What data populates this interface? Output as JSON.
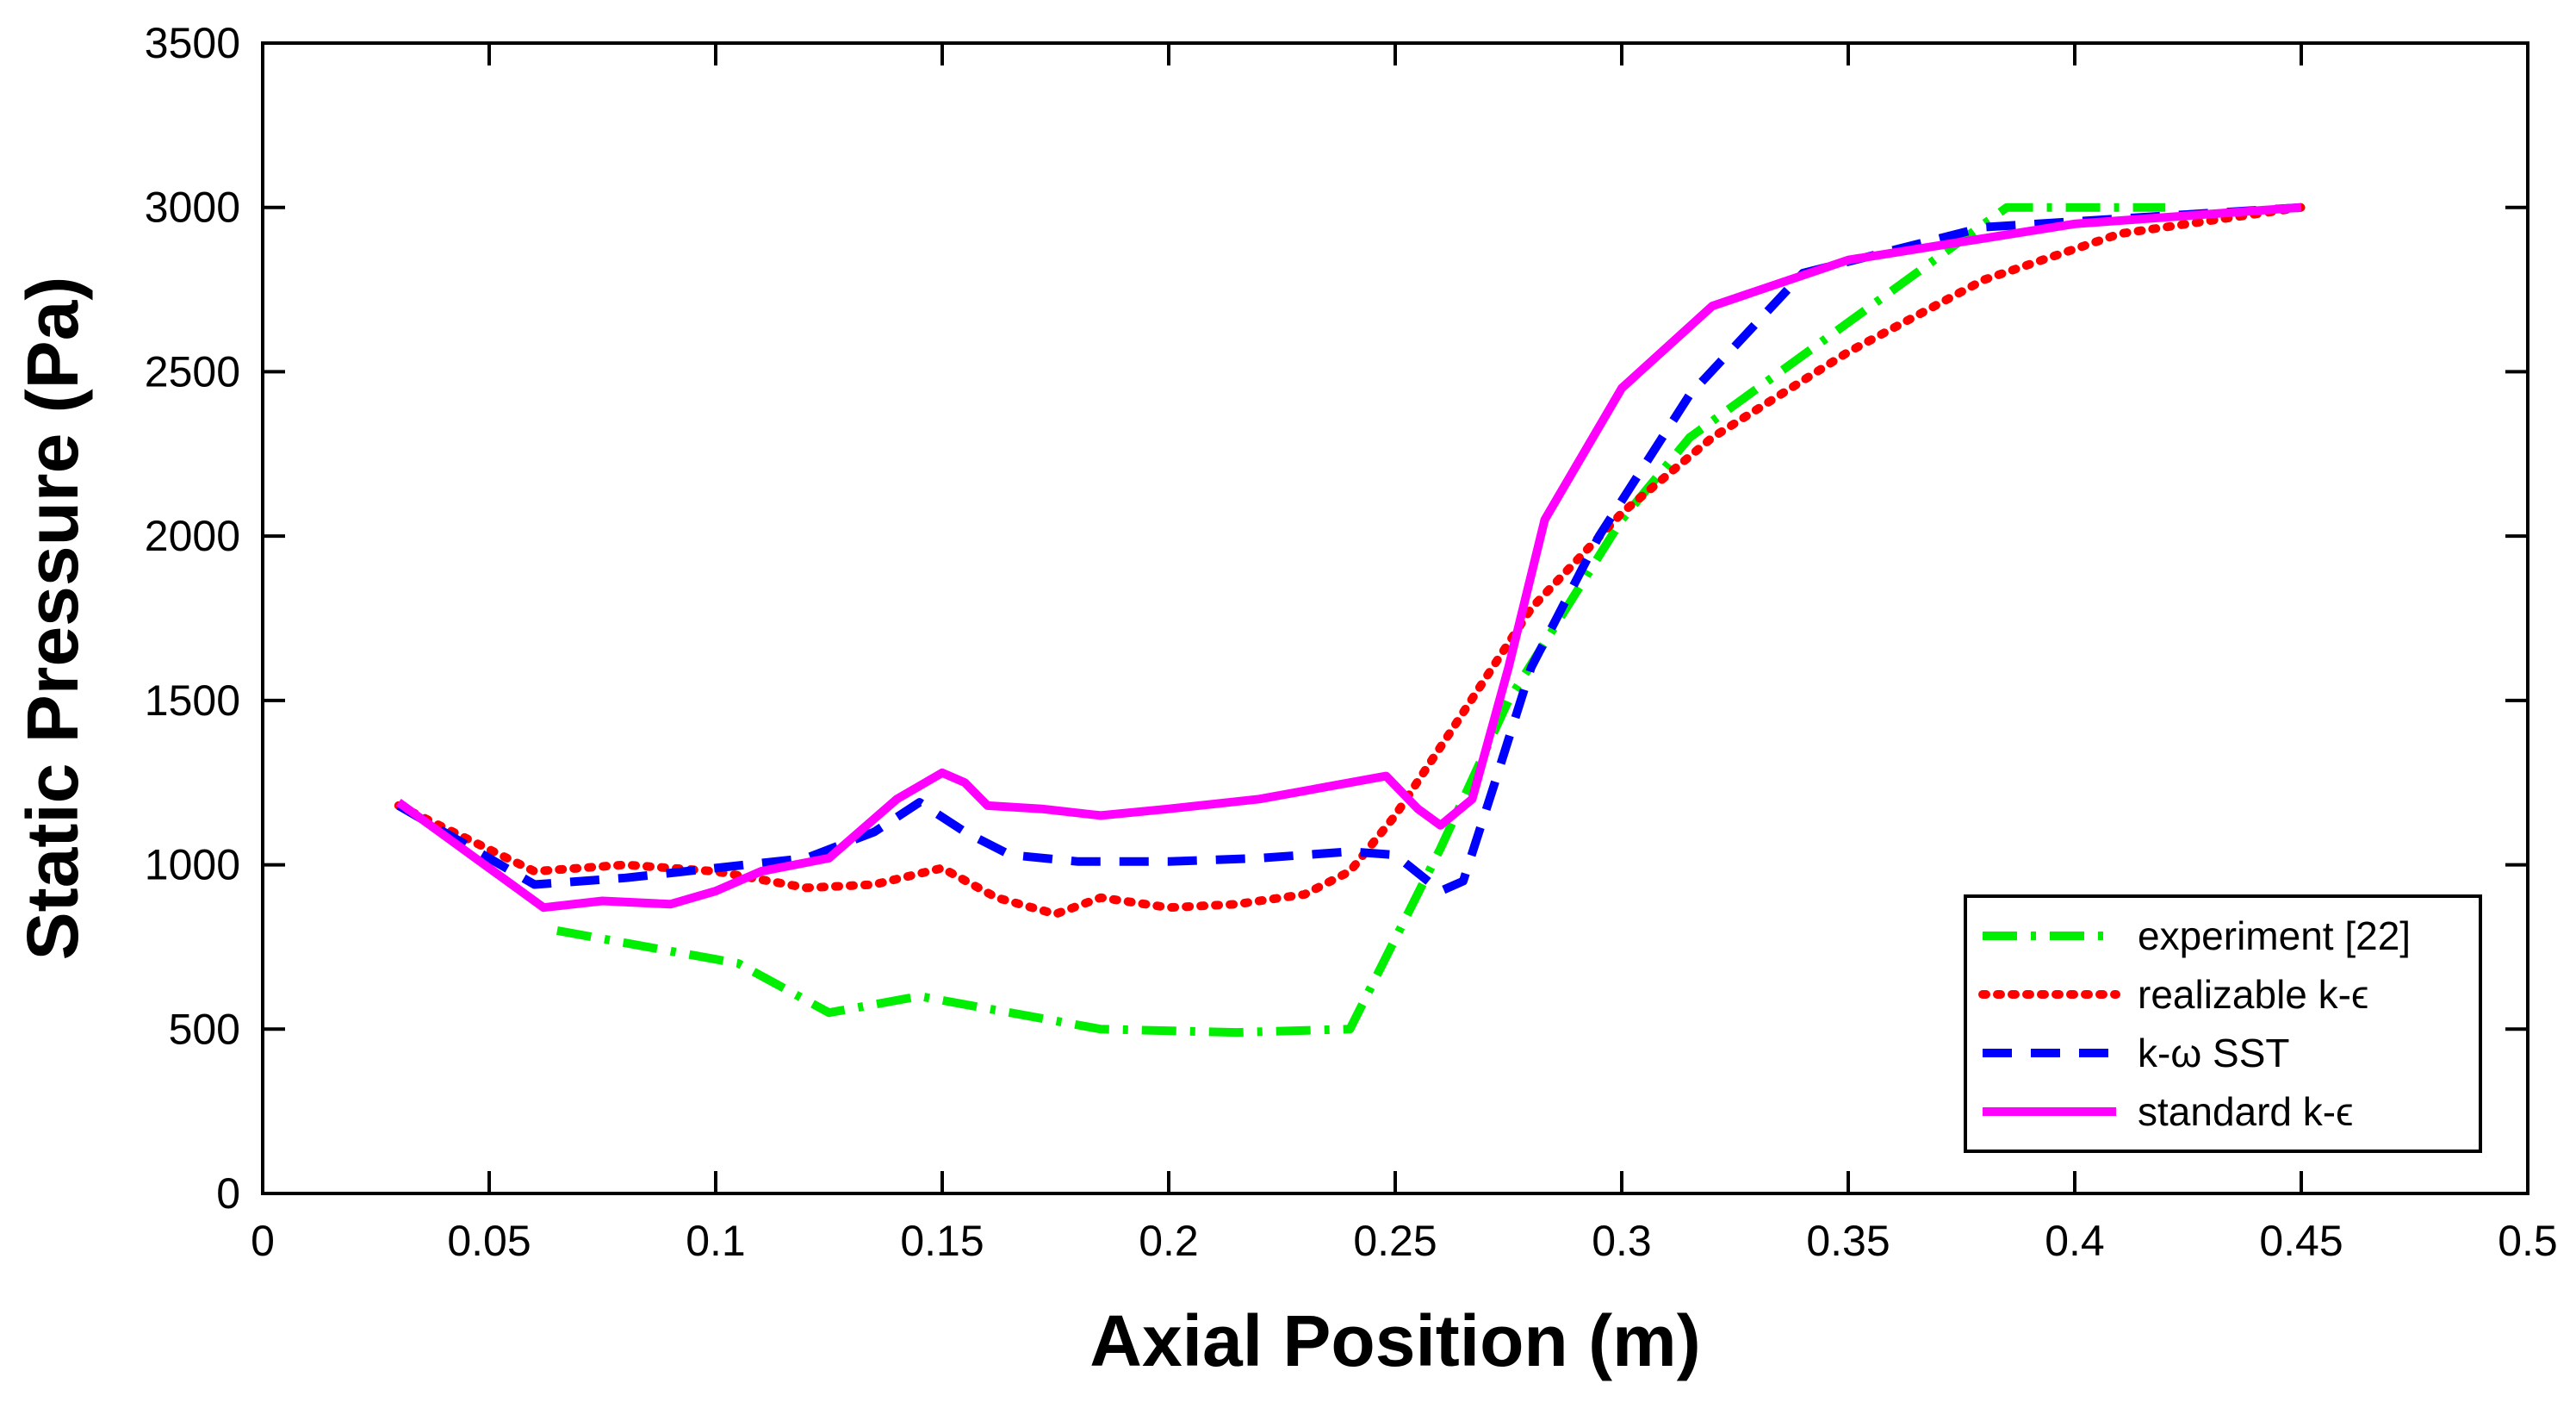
{
  "chart_data": {
    "type": "line",
    "title": "",
    "xlabel": "Axial Position (m)",
    "ylabel": "Static Pressure (Pa)",
    "xlim": [
      0,
      0.5
    ],
    "ylim": [
      0,
      3500
    ],
    "xticks": [
      0,
      0.05,
      0.1,
      0.15,
      0.2,
      0.25,
      0.3,
      0.35,
      0.4,
      0.45,
      0.5
    ],
    "xtick_labels": [
      "0",
      "0.05",
      "0.1",
      "0.15",
      "0.2",
      "0.25",
      "0.3",
      "0.35",
      "0.4",
      "0.45",
      "0.5"
    ],
    "yticks": [
      0,
      500,
      1000,
      1500,
      2000,
      2500,
      3000,
      3500
    ],
    "ytick_labels": [
      "0",
      "500",
      "1000",
      "1500",
      "2000",
      "2500",
      "3000",
      "3500"
    ],
    "grid": false,
    "legend_position": "bottom-right",
    "series": [
      {
        "name": "experiment [22]",
        "color": "#00ee00",
        "style": "dashdot",
        "points": [
          [
            0.065,
            800
          ],
          [
            0.105,
            700
          ],
          [
            0.125,
            550
          ],
          [
            0.145,
            600
          ],
          [
            0.185,
            500
          ],
          [
            0.215,
            490
          ],
          [
            0.24,
            500
          ],
          [
            0.26,
            1050
          ],
          [
            0.275,
            1500
          ],
          [
            0.3,
            2050
          ],
          [
            0.315,
            2300
          ],
          [
            0.35,
            2650
          ],
          [
            0.385,
            3000
          ],
          [
            0.42,
            3000
          ]
        ]
      },
      {
        "name": "realizable k-ϵ",
        "color": "#ff0000",
        "style": "dotted",
        "points": [
          [
            0.03,
            1180
          ],
          [
            0.06,
            980
          ],
          [
            0.08,
            1000
          ],
          [
            0.1,
            980
          ],
          [
            0.12,
            930
          ],
          [
            0.135,
            940
          ],
          [
            0.15,
            990
          ],
          [
            0.162,
            900
          ],
          [
            0.175,
            850
          ],
          [
            0.185,
            900
          ],
          [
            0.2,
            870
          ],
          [
            0.215,
            880
          ],
          [
            0.23,
            910
          ],
          [
            0.24,
            980
          ],
          [
            0.25,
            1150
          ],
          [
            0.262,
            1400
          ],
          [
            0.28,
            1780
          ],
          [
            0.3,
            2070
          ],
          [
            0.32,
            2300
          ],
          [
            0.35,
            2560
          ],
          [
            0.38,
            2780
          ],
          [
            0.41,
            2920
          ],
          [
            0.45,
            3000
          ]
        ]
      },
      {
        "name": "k-ω SST",
        "color": "#0000ff",
        "style": "dashed",
        "points": [
          [
            0.03,
            1180
          ],
          [
            0.06,
            940
          ],
          [
            0.08,
            960
          ],
          [
            0.1,
            990
          ],
          [
            0.12,
            1020
          ],
          [
            0.135,
            1100
          ],
          [
            0.145,
            1190
          ],
          [
            0.155,
            1100
          ],
          [
            0.165,
            1030
          ],
          [
            0.18,
            1010
          ],
          [
            0.2,
            1010
          ],
          [
            0.22,
            1020
          ],
          [
            0.24,
            1040
          ],
          [
            0.25,
            1030
          ],
          [
            0.26,
            920
          ],
          [
            0.265,
            950
          ],
          [
            0.272,
            1250
          ],
          [
            0.28,
            1600
          ],
          [
            0.295,
            2000
          ],
          [
            0.315,
            2430
          ],
          [
            0.34,
            2800
          ],
          [
            0.38,
            2940
          ],
          [
            0.45,
            3000
          ]
        ]
      },
      {
        "name": "standard k-ϵ",
        "color": "#ff00ff",
        "style": "solid",
        "points": [
          [
            0.03,
            1190
          ],
          [
            0.05,
            990
          ],
          [
            0.062,
            870
          ],
          [
            0.075,
            890
          ],
          [
            0.09,
            880
          ],
          [
            0.1,
            920
          ],
          [
            0.11,
            980
          ],
          [
            0.125,
            1020
          ],
          [
            0.14,
            1200
          ],
          [
            0.15,
            1280
          ],
          [
            0.155,
            1250
          ],
          [
            0.16,
            1180
          ],
          [
            0.172,
            1170
          ],
          [
            0.185,
            1150
          ],
          [
            0.2,
            1170
          ],
          [
            0.22,
            1200
          ],
          [
            0.24,
            1250
          ],
          [
            0.248,
            1270
          ],
          [
            0.255,
            1170
          ],
          [
            0.26,
            1120
          ],
          [
            0.267,
            1200
          ],
          [
            0.275,
            1600
          ],
          [
            0.283,
            2050
          ],
          [
            0.3,
            2450
          ],
          [
            0.32,
            2700
          ],
          [
            0.35,
            2840
          ],
          [
            0.4,
            2950
          ],
          [
            0.45,
            3000
          ]
        ]
      }
    ]
  }
}
